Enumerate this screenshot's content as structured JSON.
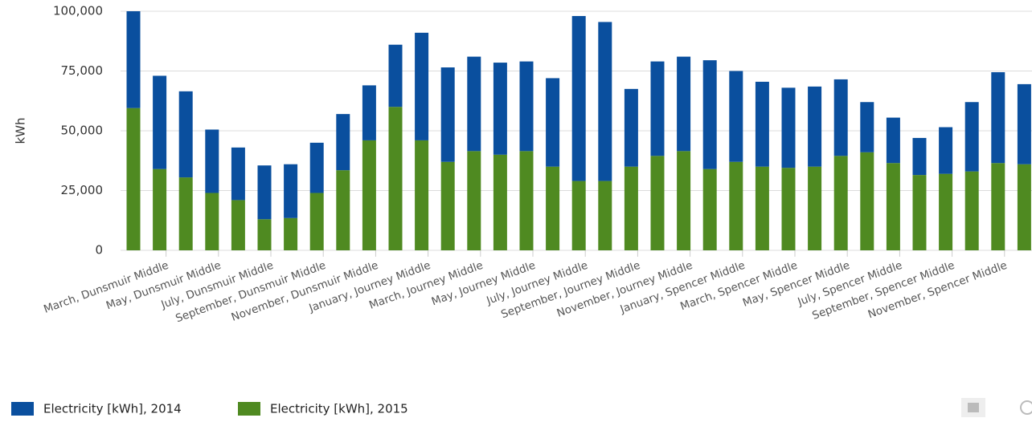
{
  "chart_data": {
    "type": "stacked_bar",
    "y_label": "kWh",
    "categories": [
      null,
      "March, Dunsmuir Middle",
      null,
      "May, Dunsmuir Middle",
      null,
      "July, Dunsmuir Middle",
      null,
      "September, Dunsmuir Middle",
      null,
      "November, Dunsmuir Middle",
      null,
      "January, Journey Middle",
      null,
      "March, Journey Middle",
      null,
      "May, Journey Middle",
      null,
      "July, Journey Middle",
      null,
      "September, Journey Middle",
      null,
      "November, Journey Middle",
      null,
      "January, Spencer Middle",
      null,
      "March, Spencer Middle",
      null,
      "May, Spencer Middle",
      null,
      "July, Spencer Middle",
      null,
      "September, Spencer Middle",
      null,
      "November, Spencer Middle",
      null
    ],
    "series": [
      {
        "name": "Electricity [kWh], 2014",
        "color": "#0a4f9e",
        "values": [
          40500,
          39000,
          36000,
          26500,
          22000,
          22500,
          22500,
          21000,
          23500,
          23000,
          26000,
          45000,
          39500,
          39500,
          38500,
          37500,
          37000,
          69000,
          66500,
          32500,
          39500,
          39500,
          45500,
          38000,
          35500,
          33500,
          33500,
          32000,
          21000,
          19000,
          15500,
          19500,
          29000,
          38000,
          33500
        ]
      },
      {
        "name": "Electricity [kWh], 2015",
        "color": "#4f8a21",
        "values": [
          59500,
          34000,
          30500,
          24000,
          21000,
          13000,
          13500,
          24000,
          33500,
          46000,
          60000,
          46000,
          37000,
          41500,
          40000,
          41500,
          35000,
          29000,
          29000,
          35000,
          39500,
          41500,
          34000,
          37000,
          35000,
          34500,
          35000,
          39500,
          41000,
          36500,
          31500,
          32000,
          33000,
          36500,
          36000
        ]
      }
    ],
    "ylim": [
      0,
      100000
    ],
    "yticks": [
      0,
      {
        "value": 25000,
        "label": "25,000"
      },
      {
        "value": 50000,
        "label": "50,000"
      },
      {
        "value": 75000,
        "label": "75,000"
      },
      {
        "value": 100000,
        "label": "100,000"
      }
    ],
    "grid": true
  }
}
